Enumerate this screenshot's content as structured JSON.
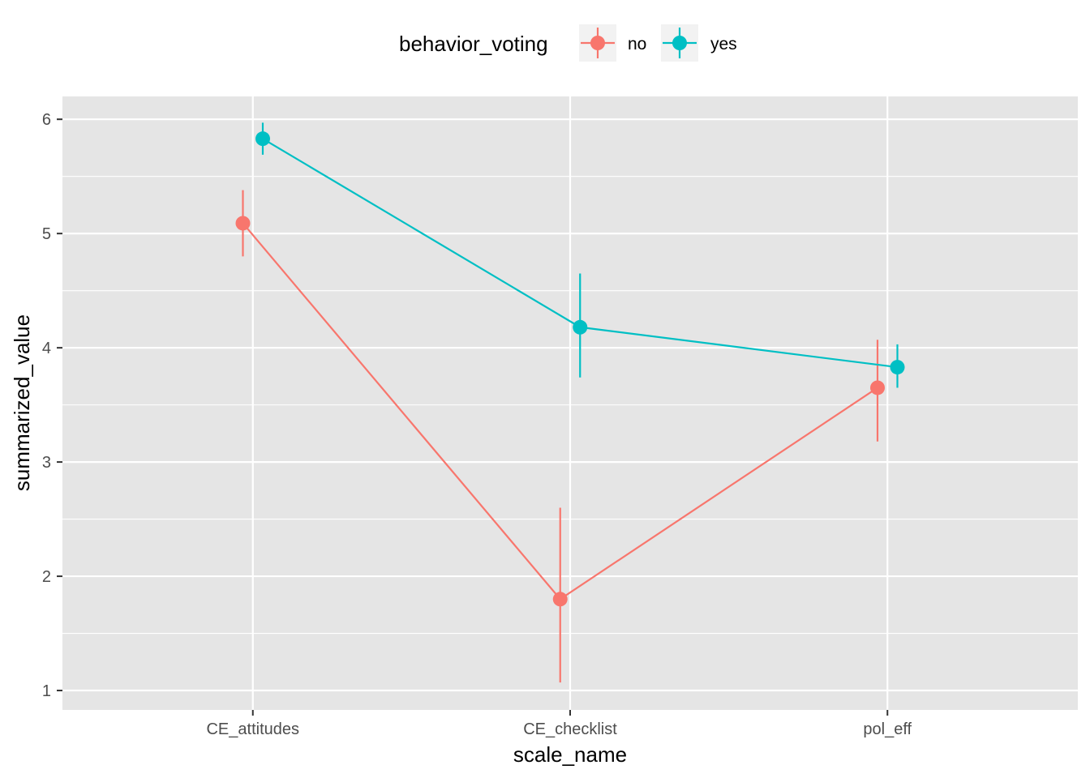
{
  "chart_data": {
    "type": "line",
    "legend": {
      "title": "behavior_voting",
      "position": "top"
    },
    "xlabel": "scale_name",
    "ylabel": "summarized_value",
    "categories": [
      "CE_attitudes",
      "CE_checklist",
      "pol_eff"
    ],
    "ylim": [
      0.83,
      6.2
    ],
    "yticks": [
      "1",
      "2",
      "3",
      "4",
      "5",
      "6"
    ],
    "grid": true,
    "series": [
      {
        "name": "no",
        "color": "#F8766D",
        "values": [
          5.09,
          1.8,
          3.65
        ],
        "lower": [
          4.8,
          1.07,
          3.18
        ],
        "upper": [
          5.38,
          2.6,
          4.07
        ]
      },
      {
        "name": "yes",
        "color": "#00BFC4",
        "values": [
          5.83,
          4.18,
          3.83
        ],
        "lower": [
          5.69,
          3.74,
          3.65
        ],
        "upper": [
          5.97,
          4.65,
          4.03
        ]
      }
    ]
  }
}
